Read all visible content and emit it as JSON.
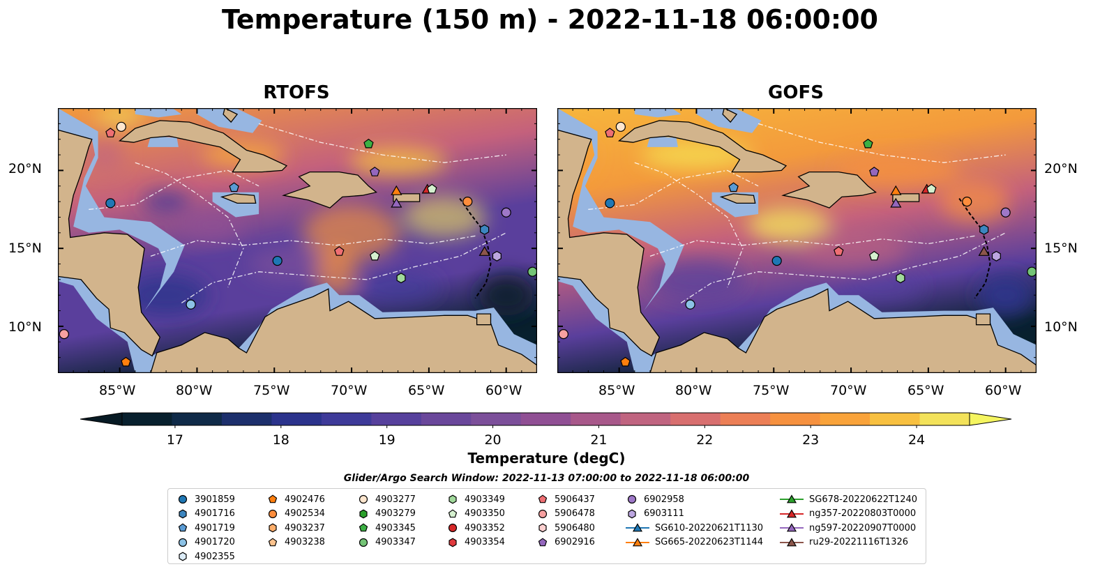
{
  "title": "Temperature (150 m) - 2022-11-18 06:00:00",
  "panels": [
    {
      "title": "RTOFS"
    },
    {
      "title": "GOFS"
    }
  ],
  "axes": {
    "lon_ticks": [
      "85°W",
      "80°W",
      "75°W",
      "70°W",
      "65°W",
      "60°W"
    ],
    "lat_ticks": [
      "20°N",
      "15°N",
      "10°N"
    ]
  },
  "colorbar": {
    "title": "Temperature (degC)",
    "tick_labels": [
      "17",
      "18",
      "19",
      "20",
      "21",
      "22",
      "23",
      "24"
    ],
    "min": 16.5,
    "max": 24.5,
    "colors": [
      "#08202e",
      "#0f2a48",
      "#1c2f6c",
      "#2b338c",
      "#3e3a99",
      "#56409c",
      "#6a479b",
      "#7c4f9a",
      "#904f94",
      "#a8588a",
      "#c06480",
      "#d86f6f",
      "#ec7f56",
      "#f6913f",
      "#f9a33a",
      "#f8c040",
      "#f3e25a"
    ],
    "under_color": "#071a24",
    "over_color": "#f5f560"
  },
  "search_window": "Glider/Argo Search Window: 2022-11-13 07:00:00 to 2022-11-18 06:00:00",
  "legend": {
    "columns": [
      [
        {
          "label": "3901859",
          "marker": "circle",
          "color": "#1f77b4"
        },
        {
          "label": "4901716",
          "marker": "hexagon",
          "color": "#3d86c0"
        },
        {
          "label": "4901719",
          "marker": "pentagon",
          "color": "#5a9bd4"
        },
        {
          "label": "4901720",
          "marker": "circle",
          "color": "#8cc2e6"
        },
        {
          "label": "4902355",
          "marker": "hexagon",
          "color": "#dcecf8"
        }
      ],
      [
        {
          "label": "4902476",
          "marker": "pentagon",
          "color": "#ff7f0e"
        },
        {
          "label": "4902534",
          "marker": "circle",
          "color": "#fd8d3c"
        },
        {
          "label": "4903237",
          "marker": "hexagon",
          "color": "#fdae6b"
        },
        {
          "label": "4903238",
          "marker": "pentagon",
          "color": "#fdc38e"
        }
      ],
      [
        {
          "label": "4903277",
          "marker": "circle",
          "color": "#fee6ce"
        },
        {
          "label": "4903279",
          "marker": "hexagon",
          "color": "#2ca02c"
        },
        {
          "label": "4903345",
          "marker": "pentagon",
          "color": "#3cb044"
        },
        {
          "label": "4903347",
          "marker": "circle",
          "color": "#74c476"
        }
      ],
      [
        {
          "label": "4903349",
          "marker": "hexagon",
          "color": "#a1d99b"
        },
        {
          "label": "4903350",
          "marker": "pentagon",
          "color": "#d5f0cf"
        },
        {
          "label": "4903352",
          "marker": "circle",
          "color": "#d62728"
        },
        {
          "label": "4903354",
          "marker": "hexagon",
          "color": "#e03a3e"
        }
      ],
      [
        {
          "label": "5906437",
          "marker": "pentagon",
          "color": "#ef6f73"
        },
        {
          "label": "5906478",
          "marker": "circle",
          "color": "#f7a1a1"
        },
        {
          "label": "5906480",
          "marker": "hexagon",
          "color": "#fcd0d0"
        },
        {
          "label": "6902916",
          "marker": "pentagon",
          "color": "#9467bd"
        }
      ],
      [
        {
          "label": "6902958",
          "marker": "circle",
          "color": "#9e78c8"
        },
        {
          "label": "6903111",
          "marker": "hexagon",
          "color": "#bca6e0"
        },
        {
          "label": "SG610-20220621T1130",
          "marker": "triangle-line",
          "color": "#1f77b4"
        },
        {
          "label": "SG665-20220623T1144",
          "marker": "triangle-line",
          "color": "#ff7f0e"
        }
      ],
      [
        {
          "label": "SG678-20220622T1240",
          "marker": "triangle-line",
          "color": "#2ca02c"
        },
        {
          "label": "ng357-20220803T0000",
          "marker": "triangle-line",
          "color": "#d62728"
        },
        {
          "label": "ng597-20220907T0000",
          "marker": "triangle-line",
          "color": "#9467bd"
        },
        {
          "label": "ru29-20221116T1326",
          "marker": "triangle-line",
          "color": "#8c564b"
        }
      ]
    ]
  },
  "map_extent": {
    "lon_min": -89,
    "lon_max": -58,
    "lat_min": 7,
    "lat_max": 24
  },
  "observations": [
    {
      "id": "5906437",
      "lon": -85.6,
      "lat": 22.4
    },
    {
      "id": "4903277",
      "lon": -84.9,
      "lat": 22.8
    },
    {
      "id": "3901859",
      "lon": -85.6,
      "lat": 17.9
    },
    {
      "id": "4901719",
      "lon": -77.6,
      "lat": 18.9
    },
    {
      "id": "4903345",
      "lon": -68.9,
      "lat": 21.7
    },
    {
      "id": "6902916",
      "lon": -68.5,
      "lat": 19.9
    },
    {
      "id": "SG665-20220623T1144",
      "lon": -67.1,
      "lat": 18.7
    },
    {
      "id": "ng597-20220907T0000",
      "lon": -67.1,
      "lat": 17.9
    },
    {
      "id": "ng357-20220803T0000",
      "lon": -65.1,
      "lat": 18.8
    },
    {
      "id": "4903350",
      "lon": -64.8,
      "lat": 18.8
    },
    {
      "id": "4902534",
      "lon": -62.5,
      "lat": 18.0
    },
    {
      "id": "6902958",
      "lon": -60.0,
      "lat": 17.3
    },
    {
      "id": "4901716",
      "lon": -61.4,
      "lat": 16.2
    },
    {
      "id": "ru29-20221116T1326",
      "lon": -61.4,
      "lat": 14.8
    },
    {
      "id": "6903111",
      "lon": -60.6,
      "lat": 14.5
    },
    {
      "id": "4903347",
      "lon": -58.3,
      "lat": 13.5
    },
    {
      "id": "4903349",
      "lon": -66.8,
      "lat": 13.1
    },
    {
      "id": "5906437",
      "lon": -70.8,
      "lat": 14.8
    },
    {
      "id": "4903350",
      "lon": -68.5,
      "lat": 14.5
    },
    {
      "id": "3901859",
      "lon": -74.8,
      "lat": 14.2
    },
    {
      "id": "4901720",
      "lon": -80.4,
      "lat": 11.4
    },
    {
      "id": "5906478",
      "lon": -88.6,
      "lat": 9.5
    },
    {
      "id": "4902476",
      "lon": -84.6,
      "lat": 7.7
    }
  ],
  "marker_styles": {
    "3901859": {
      "marker": "circle",
      "color": "#1f77b4"
    },
    "4901716": {
      "marker": "hexagon",
      "color": "#3d86c0"
    },
    "4901719": {
      "marker": "pentagon",
      "color": "#5a9bd4"
    },
    "4901720": {
      "marker": "circle",
      "color": "#8cc2e6"
    },
    "4902476": {
      "marker": "pentagon",
      "color": "#ff7f0e"
    },
    "4902534": {
      "marker": "circle",
      "color": "#fd8d3c"
    },
    "4903277": {
      "marker": "circle",
      "color": "#fee6ce"
    },
    "4903345": {
      "marker": "pentagon",
      "color": "#3cb044"
    },
    "4903347": {
      "marker": "circle",
      "color": "#74c476"
    },
    "4903349": {
      "marker": "hexagon",
      "color": "#a1d99b"
    },
    "4903350": {
      "marker": "pentagon",
      "color": "#d5f0cf"
    },
    "5906437": {
      "marker": "pentagon",
      "color": "#ef6f73"
    },
    "5906478": {
      "marker": "circle",
      "color": "#f7a1a1"
    },
    "6902916": {
      "marker": "pentagon",
      "color": "#9467bd"
    },
    "6902958": {
      "marker": "circle",
      "color": "#9e78c8"
    },
    "6903111": {
      "marker": "hexagon",
      "color": "#bca6e0"
    },
    "SG665-20220623T1144": {
      "marker": "triangle",
      "color": "#ff7f0e"
    },
    "ng357-20220803T0000": {
      "marker": "triangle",
      "color": "#d62728"
    },
    "ng597-20220907T0000": {
      "marker": "triangle",
      "color": "#9467bd"
    },
    "ru29-20221116T1326": {
      "marker": "triangle",
      "color": "#8c564b"
    }
  },
  "map_colors": {
    "land": "#d2b48c",
    "shelf": "#97b6e1",
    "ocean_warm": "#f39a3c",
    "ocean_mid": "#c4617c",
    "ocean_cool": "#5a3f9c",
    "ocean_cold": "#08202e"
  }
}
